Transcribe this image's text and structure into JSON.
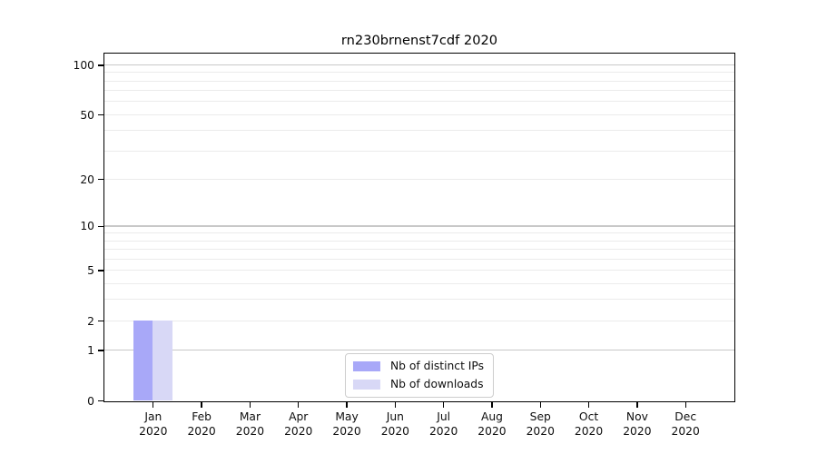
{
  "chart_data": {
    "type": "bar",
    "title": "rn230brnenst7cdf 2020",
    "x_tick_labels": [
      [
        "Jan",
        "2020"
      ],
      [
        "Feb",
        "2020"
      ],
      [
        "Mar",
        "2020"
      ],
      [
        "Apr",
        "2020"
      ],
      [
        "May",
        "2020"
      ],
      [
        "Jun",
        "2020"
      ],
      [
        "Jul",
        "2020"
      ],
      [
        "Aug",
        "2020"
      ],
      [
        "Sep",
        "2020"
      ],
      [
        "Oct",
        "2020"
      ],
      [
        "Nov",
        "2020"
      ],
      [
        "Dec",
        "2020"
      ]
    ],
    "series": [
      {
        "name": "Nb of distinct IPs",
        "color": "#a8a8f8",
        "values": [
          2,
          0,
          0,
          0,
          0,
          0,
          0,
          0,
          0,
          0,
          0,
          0
        ]
      },
      {
        "name": "Nb of downloads",
        "color": "#d8d8f6",
        "values": [
          2,
          0,
          0,
          0,
          0,
          0,
          0,
          0,
          0,
          0,
          0,
          0
        ]
      }
    ],
    "yscale": "log1p",
    "ylim": [
      0,
      117
    ],
    "y_tick_values": [
      100,
      50,
      20,
      10,
      5,
      2,
      1,
      0
    ],
    "grid_major_values": [
      1,
      10,
      100
    ],
    "grid_minor_values": [
      2,
      3,
      4,
      5,
      6,
      7,
      8,
      9,
      20,
      30,
      40,
      50,
      60,
      70,
      80,
      90
    ],
    "legend_position": "lower center",
    "colors": {
      "grid_major": "#c8c8c8",
      "grid_minor": "#ebebeb",
      "spine": "#000000",
      "text": "#0f0f0f"
    }
  }
}
